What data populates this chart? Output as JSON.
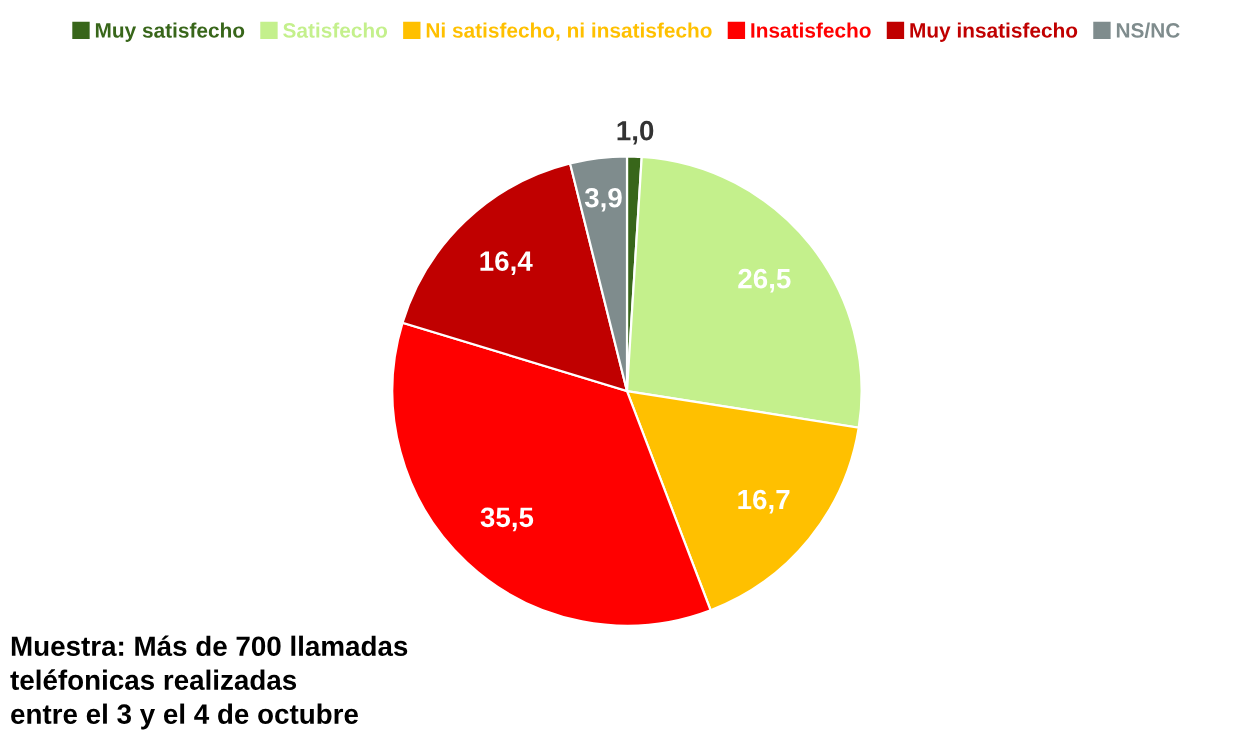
{
  "chart_data": {
    "type": "pie",
    "categories": [
      "Muy satisfecho",
      "Satisfecho",
      "Ni satisfecho, ni insatisfecho",
      "Insatisfecho",
      "Muy insatisfecho",
      "NS/NC"
    ],
    "values": [
      1.0,
      26.5,
      16.7,
      35.5,
      16.4,
      3.9
    ],
    "value_labels": [
      "1,0",
      "26,5",
      "16,7",
      "35,5",
      "16,4",
      "3,9"
    ],
    "colors": [
      "#38661a",
      "#c4f08c",
      "#ffc000",
      "#ff0000",
      "#c00000",
      "#7f8c8d"
    ],
    "legend": "top",
    "annotations": [
      "Muestra: Más de 700 llamadas\nteléfonicas realizadas\nentre el 3 y el 4 de octubre"
    ]
  }
}
